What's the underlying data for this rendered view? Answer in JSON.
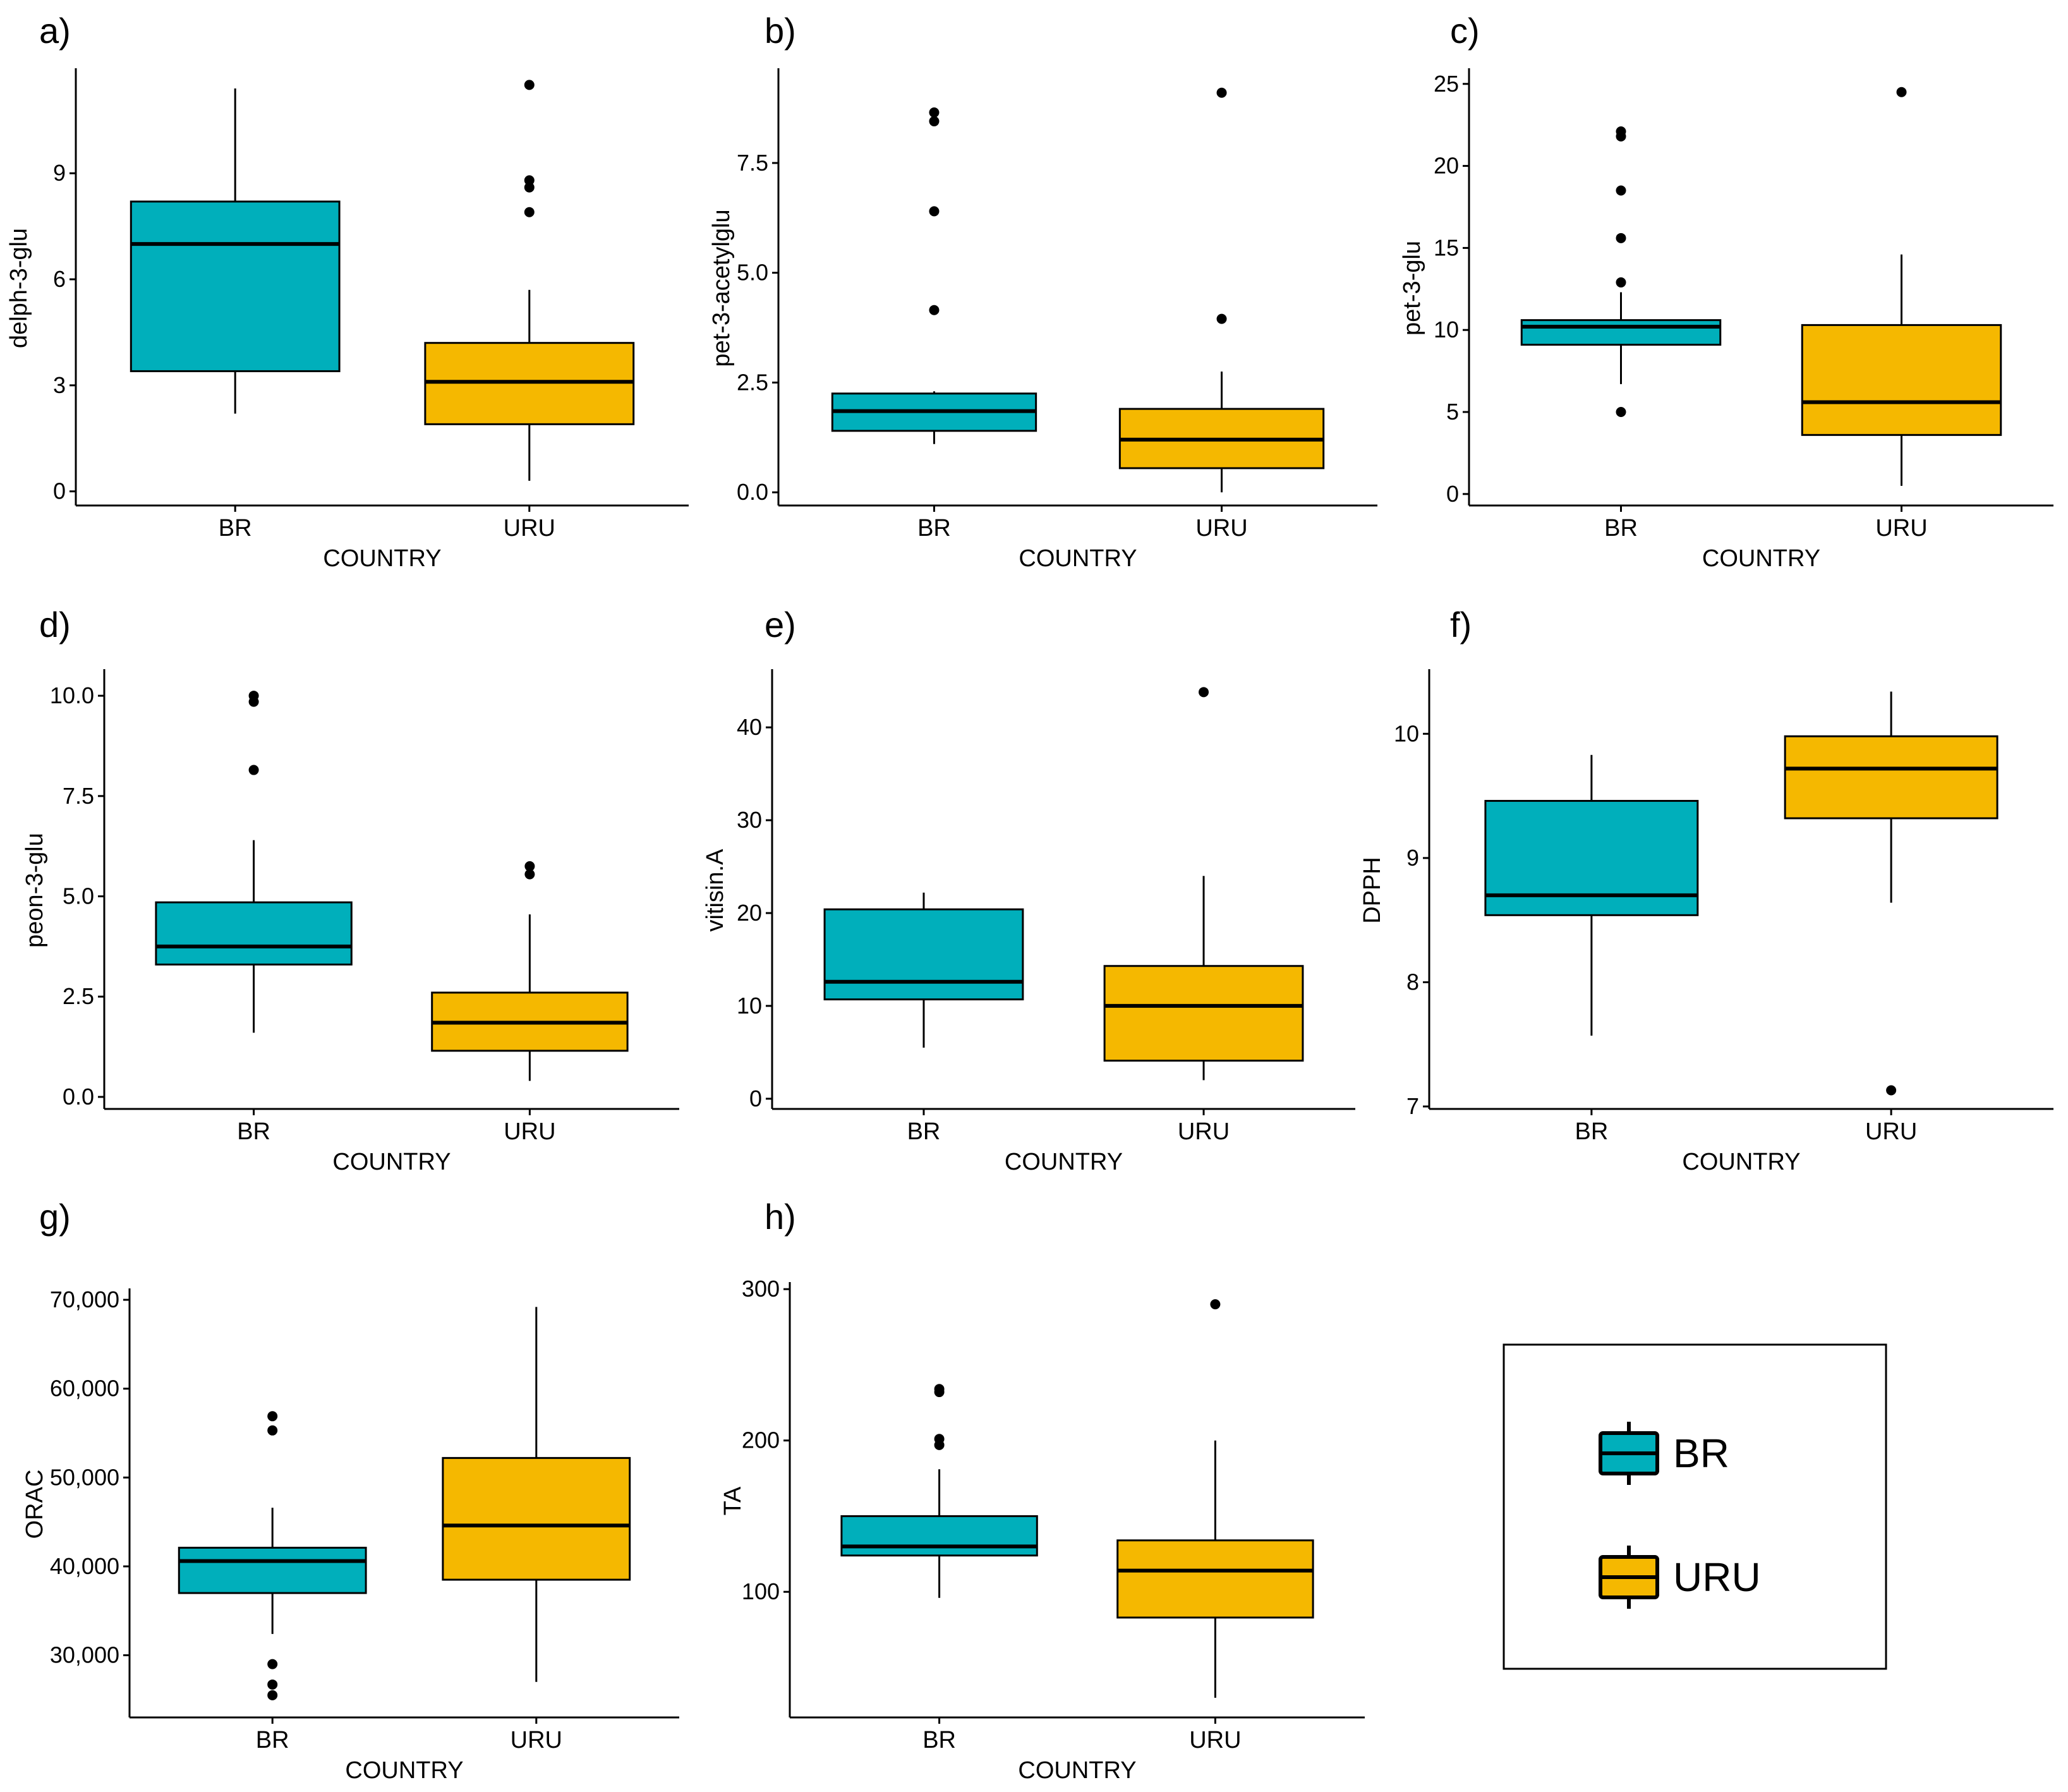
{
  "chart_data": [
    {
      "id": "a",
      "panel": "a)",
      "type": "box",
      "xlabel": "COUNTRY",
      "ylabel": "delph-3-glu",
      "ylim": [
        -0.4,
        11.9
      ],
      "yticks": [
        0,
        3,
        6,
        9
      ],
      "ytick_labels": [
        "0",
        "3",
        "6",
        "9"
      ],
      "categories": [
        "BR",
        "URU"
      ],
      "boxes": [
        {
          "group": "BR",
          "whisker_low": 2.2,
          "q1": 3.4,
          "median": 7.0,
          "q3": 8.2,
          "whisker_high": 11.4,
          "outliers": []
        },
        {
          "group": "URU",
          "whisker_low": 0.3,
          "q1": 1.9,
          "median": 3.1,
          "q3": 4.2,
          "whisker_high": 5.7,
          "outliers": [
            7.9,
            8.6,
            8.8,
            11.5
          ]
        }
      ]
    },
    {
      "id": "b",
      "panel": "b)",
      "type": "box",
      "xlabel": "COUNTRY",
      "ylabel": "pet-3-acetylglu",
      "ylim": [
        -0.3,
        9.6
      ],
      "yticks": [
        0,
        2.5,
        5,
        7.5
      ],
      "ytick_labels": [
        "0.0",
        "2.5",
        "5.0",
        "7.5"
      ],
      "categories": [
        "BR",
        "URU"
      ],
      "boxes": [
        {
          "group": "BR",
          "whisker_low": 1.1,
          "q1": 1.4,
          "median": 1.85,
          "q3": 2.25,
          "whisker_high": 2.3,
          "outliers": [
            4.15,
            6.4,
            8.45,
            8.65
          ]
        },
        {
          "group": "URU",
          "whisker_low": 0.0,
          "q1": 0.55,
          "median": 1.2,
          "q3": 1.9,
          "whisker_high": 2.75,
          "outliers": [
            3.95,
            9.1
          ]
        }
      ]
    },
    {
      "id": "c",
      "panel": "c)",
      "type": "box",
      "xlabel": "COUNTRY",
      "ylabel": "pet-3-glu",
      "ylim": [
        -0.7,
        25.8
      ],
      "yticks": [
        0,
        5,
        10,
        15,
        20,
        25
      ],
      "ytick_labels": [
        "0",
        "5",
        "10",
        "15",
        "20",
        "25"
      ],
      "categories": [
        "BR",
        "URU"
      ],
      "boxes": [
        {
          "group": "BR",
          "whisker_low": 6.7,
          "q1": 9.1,
          "median": 10.2,
          "q3": 10.6,
          "whisker_high": 12.3,
          "outliers": [
            5.0,
            12.9,
            15.6,
            18.5,
            21.8,
            22.1
          ]
        },
        {
          "group": "URU",
          "whisker_low": 0.5,
          "q1": 3.6,
          "median": 5.6,
          "q3": 10.3,
          "whisker_high": 14.6,
          "outliers": [
            24.5
          ]
        }
      ]
    },
    {
      "id": "d",
      "panel": "d)",
      "type": "box",
      "xlabel": "COUNTRY",
      "ylabel": "peon-3-glu",
      "ylim": [
        -0.3,
        10.6
      ],
      "yticks": [
        0,
        2.5,
        5,
        7.5,
        10
      ],
      "ytick_labels": [
        "0.0",
        "2.5",
        "5.0",
        "7.5",
        "10.0"
      ],
      "categories": [
        "BR",
        "URU"
      ],
      "boxes": [
        {
          "group": "BR",
          "whisker_low": 1.6,
          "q1": 3.3,
          "median": 3.75,
          "q3": 4.85,
          "whisker_high": 6.4,
          "outliers": [
            8.15,
            9.85,
            10.0
          ]
        },
        {
          "group": "URU",
          "whisker_low": 0.4,
          "q1": 1.15,
          "median": 1.85,
          "q3": 2.6,
          "whisker_high": 4.55,
          "outliers": [
            5.55,
            5.75
          ]
        }
      ]
    },
    {
      "id": "e",
      "panel": "e)",
      "type": "box",
      "xlabel": "COUNTRY",
      "ylabel": "vitisin.A",
      "ylim": [
        -1.1,
        46.0
      ],
      "yticks": [
        0,
        10,
        20,
        30,
        40
      ],
      "ytick_labels": [
        "0",
        "10",
        "20",
        "30",
        "40"
      ],
      "categories": [
        "BR",
        "URU"
      ],
      "boxes": [
        {
          "group": "BR",
          "whisker_low": 5.5,
          "q1": 10.7,
          "median": 12.6,
          "q3": 20.4,
          "whisker_high": 22.2,
          "outliers": []
        },
        {
          "group": "URU",
          "whisker_low": 2.0,
          "q1": 4.1,
          "median": 10.0,
          "q3": 14.3,
          "whisker_high": 24.0,
          "outliers": [
            43.8
          ]
        }
      ]
    },
    {
      "id": "f",
      "panel": "f)",
      "type": "box",
      "xlabel": "COUNTRY",
      "ylabel": "DPPH",
      "ylim": [
        6.98,
        10.5
      ],
      "yticks": [
        7,
        8,
        9,
        10
      ],
      "ytick_labels": [
        "7",
        "8",
        "9",
        "10"
      ],
      "categories": [
        "BR",
        "URU"
      ],
      "boxes": [
        {
          "group": "BR",
          "whisker_low": 7.57,
          "q1": 8.54,
          "median": 8.7,
          "q3": 9.46,
          "whisker_high": 9.83,
          "outliers": []
        },
        {
          "group": "URU",
          "whisker_low": 8.64,
          "q1": 9.32,
          "median": 9.72,
          "q3": 9.98,
          "whisker_high": 10.34,
          "outliers": [
            7.13
          ]
        }
      ]
    },
    {
      "id": "g",
      "panel": "g)",
      "type": "box",
      "xlabel": "COUNTRY",
      "ylabel": "ORAC",
      "ylim": [
        23000,
        71000
      ],
      "yticks": [
        30000,
        40000,
        50000,
        60000,
        70000
      ],
      "ytick_labels": [
        "30,000",
        "40,000",
        "50,000",
        "60,000",
        "70,000"
      ],
      "categories": [
        "BR",
        "URU"
      ],
      "boxes": [
        {
          "group": "BR",
          "whisker_low": 32400,
          "q1": 37000,
          "median": 40600,
          "q3": 42100,
          "whisker_high": 46600,
          "outliers": [
            25500,
            26700,
            29000,
            55300,
            56900
          ]
        },
        {
          "group": "URU",
          "whisker_low": 27000,
          "q1": 38500,
          "median": 44600,
          "q3": 52200,
          "whisker_high": 69200,
          "outliers": []
        }
      ]
    },
    {
      "id": "h",
      "panel": "h)",
      "type": "box",
      "xlabel": "COUNTRY",
      "ylabel": "TA",
      "ylim": [
        17,
        303
      ],
      "yticks": [
        100,
        200,
        300
      ],
      "ytick_labels": [
        "100",
        "200",
        "300"
      ],
      "categories": [
        "BR",
        "URU"
      ],
      "boxes": [
        {
          "group": "BR",
          "whisker_low": 96,
          "q1": 124,
          "median": 130,
          "q3": 150,
          "whisker_high": 181,
          "outliers": [
            197,
            201,
            232,
            234
          ]
        },
        {
          "group": "URU",
          "whisker_low": 30,
          "q1": 83,
          "median": 114,
          "q3": 134,
          "whisker_high": 200,
          "outliers": [
            290
          ]
        }
      ]
    }
  ],
  "legend": {
    "items": [
      {
        "label": "BR",
        "color": "#00AFBB"
      },
      {
        "label": "URU",
        "color": "#F5B800"
      }
    ]
  },
  "colors": {
    "BR": "#00AFBB",
    "URU": "#F5B800"
  }
}
